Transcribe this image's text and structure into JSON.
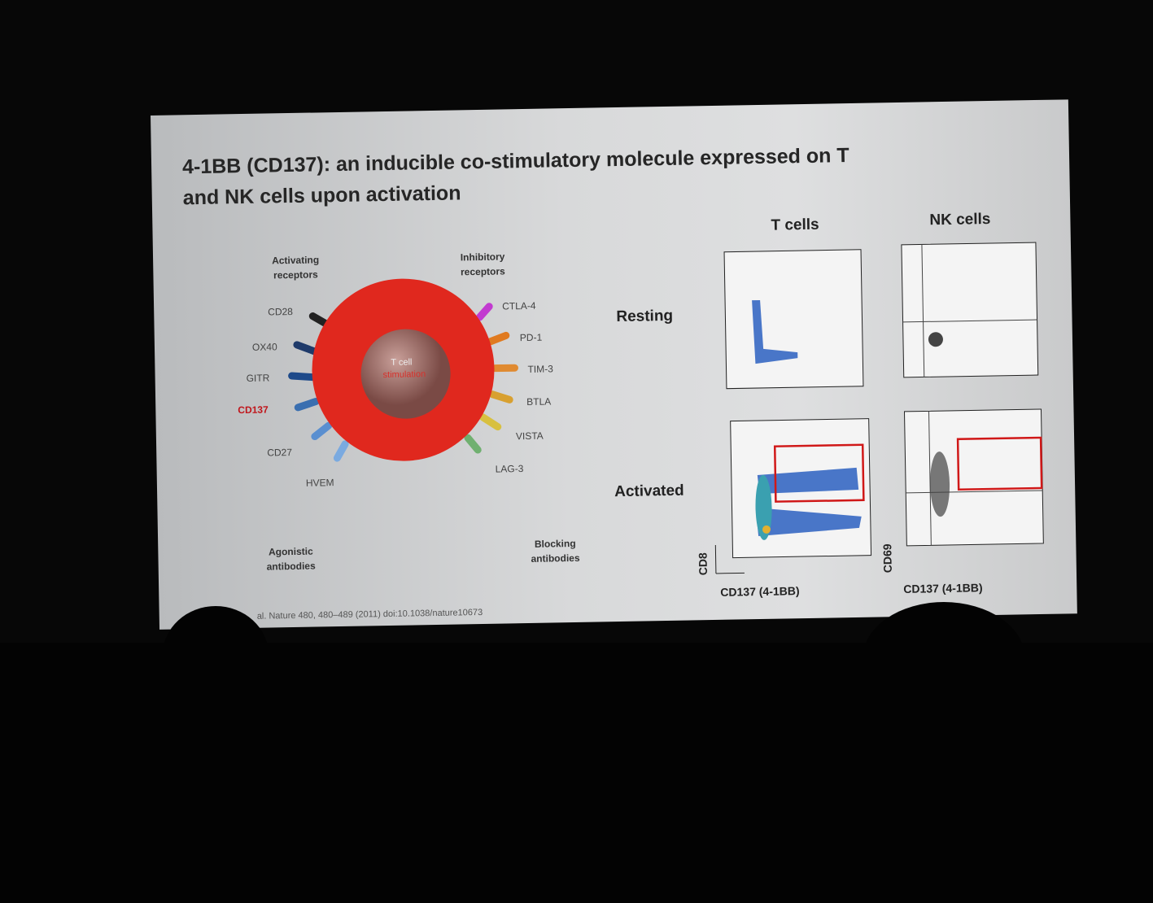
{
  "slide": {
    "title": [
      "4-1BB (CD137): an inducible co-stimulatory molecule expressed on T",
      "and NK cells upon activation"
    ],
    "diagram": {
      "activating_header": "Activating receptors",
      "inhibitory_header": "Inhibitory receptors",
      "activating": [
        "CD28",
        "OX40",
        "GITR",
        "CD137",
        "CD27",
        "HVEM"
      ],
      "inhibitory": [
        "CTLA-4",
        "PD-1",
        "TIM-3",
        "BTLA",
        "VISTA",
        "LAG-3"
      ],
      "cell_label": "T cell",
      "nucleus_label": "stimulation",
      "agonistic": "Agonistic antibodies",
      "blocking": "Blocking antibodies"
    },
    "flow": {
      "col_t": "T cells",
      "col_nk": "NK cells",
      "row_resting": "Resting",
      "row_activated": "Activated",
      "t_y_axis": "CD8",
      "t_x_axis": "CD137 (4-1BB)",
      "nk_y_axis": "CD69",
      "nk_x_axis": "CD137 (4-1BB)"
    },
    "citation": "al. Nature 480, 480–489 (2011) doi:10.1038/nature10673"
  }
}
